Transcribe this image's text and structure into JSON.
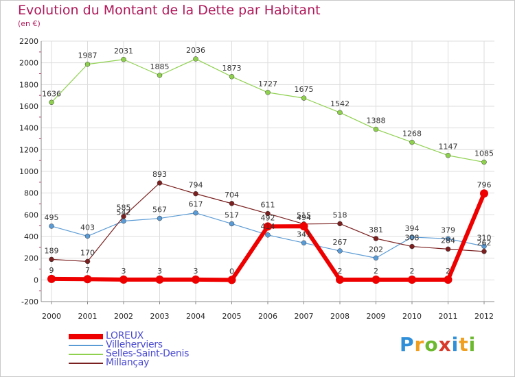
{
  "title": "Evolution du Montant de la Dette par Habitant",
  "subtitle": "(en €)",
  "brand": {
    "letters": [
      "P",
      "r",
      "o",
      "x",
      "i",
      "t",
      "i"
    ],
    "colors": [
      "#2f8fd8",
      "#f0a020",
      "#6cb82e",
      "#d83a2a",
      "#2f8fd8",
      "#f0a020",
      "#6cb82e"
    ]
  },
  "chart_data": {
    "type": "line",
    "x": [
      "2000",
      "2001",
      "2002",
      "2003",
      "2004",
      "2005",
      "2006",
      "2007",
      "2008",
      "2009",
      "2010",
      "2011",
      "2012"
    ],
    "ylim": [
      -200,
      2200
    ],
    "yticks": [
      "-200",
      "0",
      "200",
      "400",
      "600",
      "800",
      "1000",
      "1200",
      "1400",
      "1600",
      "1800",
      "2000",
      "2200"
    ],
    "grid": true,
    "legend_position": "bottom-left",
    "series": [
      {
        "name": "LOREUX",
        "color": "#ee0000",
        "values": [
          9,
          7,
          3,
          3,
          3,
          0,
          492,
          494,
          2,
          2,
          2,
          2,
          796
        ],
        "labels": [
          "9",
          "7",
          "3",
          "3",
          "3",
          "0",
          "492",
          "494",
          "2",
          "2",
          "2",
          "2",
          "796"
        ]
      },
      {
        "name": "Villeherviers",
        "color": "#5b9bd5",
        "values": [
          495,
          403,
          542,
          567,
          617,
          517,
          414,
          341,
          267,
          202,
          394,
          379,
          310
        ],
        "labels": [
          "495",
          "403",
          "542",
          "567",
          "617",
          "517",
          "414",
          "341",
          "267",
          "202",
          "394",
          "379",
          "310"
        ]
      },
      {
        "name": "Selles-Saint-Denis",
        "color": "#8fd14f",
        "values": [
          1636,
          1987,
          2031,
          1885,
          2036,
          1873,
          1727,
          1675,
          1542,
          1388,
          1268,
          1147,
          1085
        ],
        "labels": [
          "1636",
          "1987",
          "2031",
          "1885",
          "2036",
          "1873",
          "1727",
          "1675",
          "1542",
          "1388",
          "1268",
          "1147",
          "1085"
        ]
      },
      {
        "name": "Millançay",
        "color": "#7b2020",
        "values": [
          189,
          170,
          585,
          893,
          794,
          704,
          611,
          515,
          518,
          381,
          308,
          284,
          262
        ],
        "labels": [
          "189",
          "170",
          "585",
          "893",
          "794",
          "704",
          "611",
          "515",
          "518",
          "381",
          "308",
          "284",
          "262"
        ]
      }
    ]
  }
}
